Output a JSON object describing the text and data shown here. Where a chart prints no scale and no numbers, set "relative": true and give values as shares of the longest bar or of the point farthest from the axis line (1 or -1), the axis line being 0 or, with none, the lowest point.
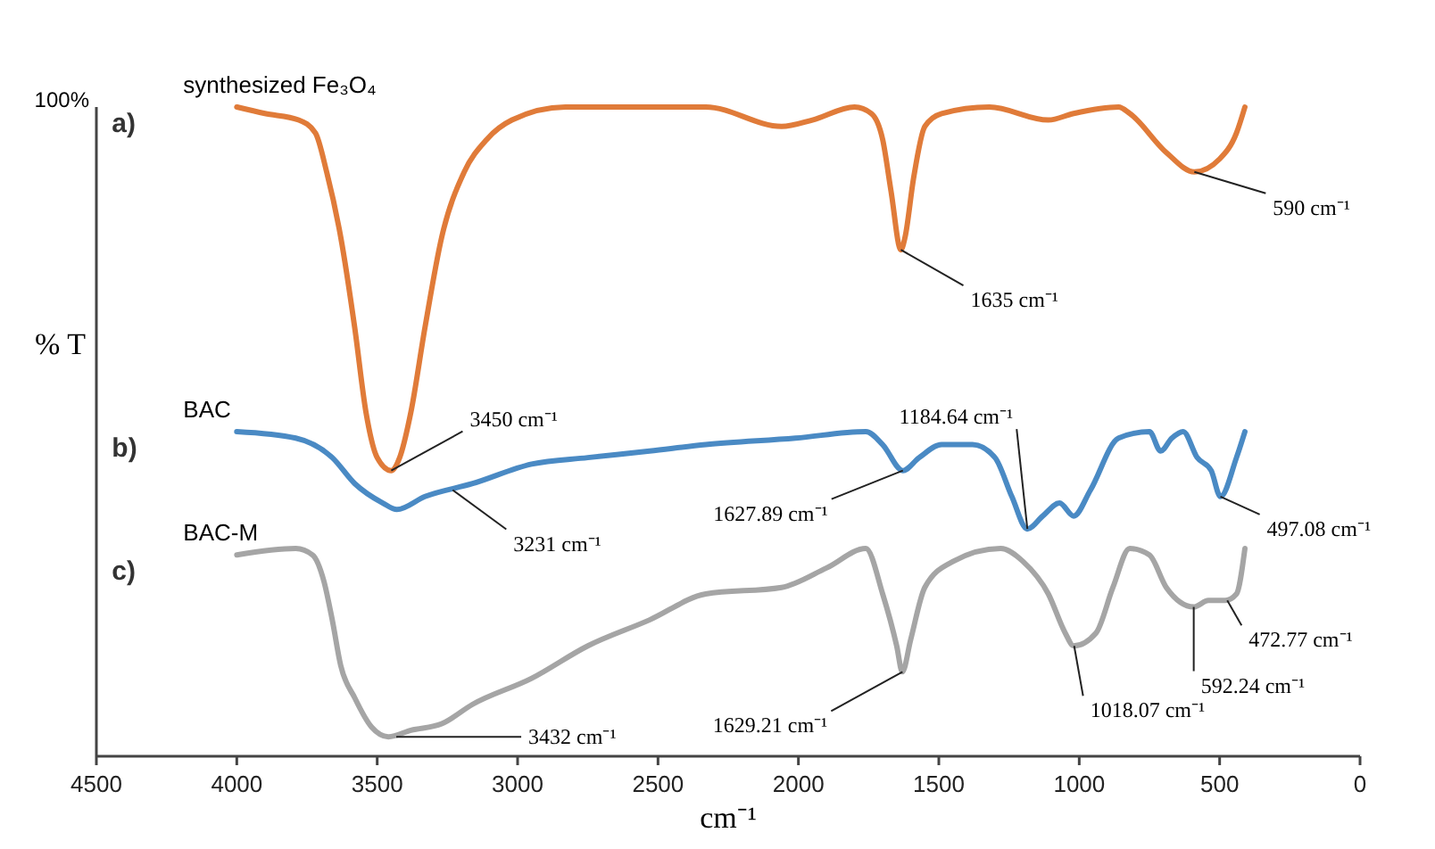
{
  "chart_data": {
    "type": "line",
    "relative": true,
    "xlabel": "cm⁻¹",
    "ylabel": "% T",
    "xlim": [
      4500,
      0
    ],
    "xticks": [
      4500,
      4000,
      3500,
      3000,
      2500,
      2000,
      1500,
      1000,
      500,
      0
    ],
    "grid": false,
    "marker": "none",
    "line_style": "solid",
    "series": [
      {
        "name": "synthesized Fe₃O₄",
        "color": "#e07b39",
        "x": [
          4000,
          3900,
          3780,
          3720,
          3680,
          3630,
          3580,
          3540,
          3500,
          3450,
          3420,
          3380,
          3330,
          3270,
          3190,
          3110,
          3020,
          2830,
          2330,
          2060,
          1950,
          1800,
          1740,
          1700,
          1670,
          1635,
          1620,
          1590,
          1550,
          1490,
          1320,
          1110,
          1020,
          860,
          820,
          690,
          590,
          500,
          440,
          410
        ],
        "values": [
          1.0,
          0.99,
          0.98,
          0.96,
          0.9,
          0.8,
          0.66,
          0.53,
          0.46,
          0.44,
          0.46,
          0.53,
          0.66,
          0.8,
          0.9,
          0.95,
          0.98,
          1.0,
          1.0,
          0.97,
          0.98,
          1.0,
          0.99,
          0.95,
          0.87,
          0.78,
          0.8,
          0.89,
          0.97,
          0.99,
          1.0,
          0.98,
          0.99,
          1.0,
          0.99,
          0.93,
          0.9,
          0.92,
          0.96,
          1.0
        ]
      },
      {
        "name": "BAC",
        "color": "#4a8ac4",
        "x": [
          4000,
          3790,
          3660,
          3580,
          3480,
          3430,
          3330,
          3160,
          2950,
          2750,
          2530,
          2330,
          2010,
          1760,
          1700,
          1628,
          1570,
          1490,
          1380,
          1300,
          1240,
          1185,
          1130,
          1070,
          1020,
          960,
          860,
          750,
          710,
          670,
          630,
          580,
          530,
          497,
          440,
          410
        ],
        "values": [
          0.5,
          0.49,
          0.46,
          0.42,
          0.39,
          0.38,
          0.4,
          0.42,
          0.45,
          0.46,
          0.47,
          0.48,
          0.49,
          0.5,
          0.48,
          0.44,
          0.46,
          0.48,
          0.48,
          0.46,
          0.4,
          0.35,
          0.37,
          0.39,
          0.37,
          0.41,
          0.49,
          0.5,
          0.47,
          0.49,
          0.5,
          0.46,
          0.44,
          0.4,
          0.46,
          0.5
        ]
      },
      {
        "name": "BAC-M",
        "color": "#a5a5a5",
        "x": [
          4000,
          3790,
          3730,
          3690,
          3660,
          3630,
          3580,
          3520,
          3460,
          3380,
          3270,
          3160,
          2950,
          2750,
          2530,
          2330,
          2060,
          1900,
          1760,
          1700,
          1650,
          1630,
          1600,
          1550,
          1450,
          1280,
          1200,
          1110,
          1050,
          1020,
          940,
          880,
          820,
          750,
          690,
          592,
          540,
          480,
          440,
          410
        ],
        "values": [
          0.31,
          0.32,
          0.31,
          0.27,
          0.21,
          0.14,
          0.09,
          0.045,
          0.03,
          0.04,
          0.05,
          0.08,
          0.12,
          0.17,
          0.21,
          0.25,
          0.26,
          0.29,
          0.32,
          0.25,
          0.17,
          0.13,
          0.18,
          0.26,
          0.3,
          0.32,
          0.3,
          0.25,
          0.19,
          0.17,
          0.19,
          0.26,
          0.32,
          0.31,
          0.26,
          0.23,
          0.24,
          0.24,
          0.25,
          0.32
        ]
      }
    ],
    "annotations": [
      "100%",
      "a)",
      "b)",
      "c)",
      {
        "text": "3450 cm⁻¹",
        "x": 3450,
        "y": 0.44
      },
      {
        "text": "1635 cm⁻¹",
        "x": 1635,
        "y": 0.78
      },
      {
        "text": "590 cm⁻¹",
        "x": 590,
        "y": 0.9
      },
      {
        "text": "3231 cm⁻¹",
        "x": 3231,
        "y": 0.41
      },
      {
        "text": "1627.89 cm⁻¹",
        "x": 1627.89,
        "y": 0.44
      },
      {
        "text": "1184.64 cm⁻¹",
        "x": 1184.64,
        "y": 0.35
      },
      {
        "text": "497.08 cm⁻¹",
        "x": 497.08,
        "y": 0.4
      },
      {
        "text": "3432 cm⁻¹",
        "x": 3432,
        "y": 0.03
      },
      {
        "text": "1629.21 cm⁻¹",
        "x": 1629.21,
        "y": 0.13
      },
      {
        "text": "1018.07 cm⁻¹",
        "x": 1018.07,
        "y": 0.17
      },
      {
        "text": "592.24 cm⁻¹",
        "x": 592.24,
        "y": 0.23
      },
      {
        "text": "472.77 cm⁻¹",
        "x": 472.77,
        "y": 0.24
      }
    ]
  }
}
